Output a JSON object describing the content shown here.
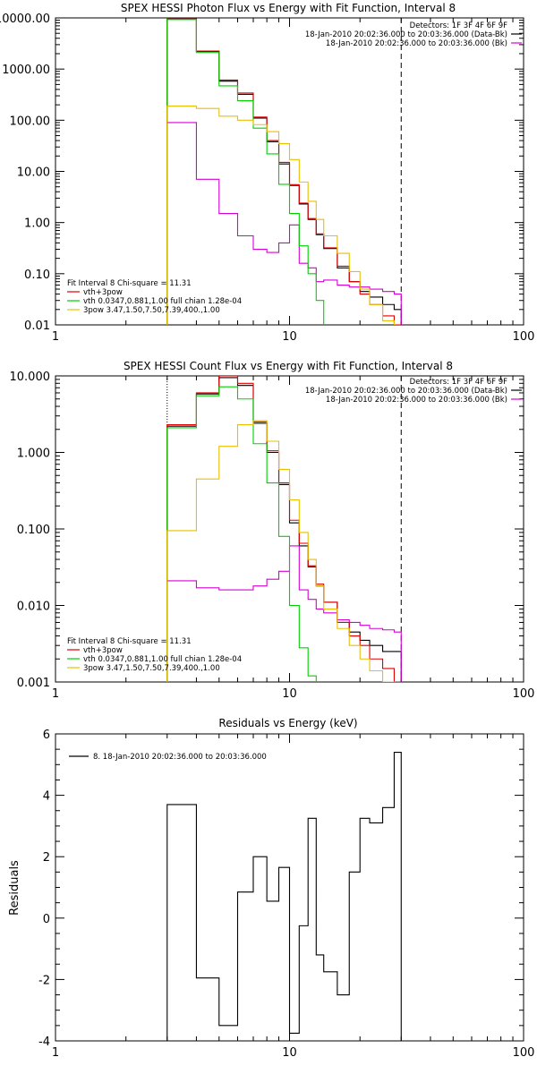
{
  "colors": {
    "data": "#000000",
    "bk": "#d400d4",
    "fit": "#e00000",
    "vth": "#00d000",
    "pow": "#e8c000"
  },
  "chart_data": [
    {
      "type": "line",
      "title": "SPEX HESSI Photon Flux vs Energy with Fit Function, Interval 8",
      "x_scale": "log",
      "y_scale": "log",
      "xlim": [
        1,
        100
      ],
      "ylim": [
        0.01,
        10000
      ],
      "x_ticks": [
        {
          "value": 1,
          "label": "1"
        },
        {
          "value": 10,
          "label": "10"
        },
        {
          "value": 100,
          "label": "100"
        }
      ],
      "y_ticks": [
        {
          "value": 0.01,
          "label": "0.01"
        },
        {
          "value": 0.1,
          "label": "0.10"
        },
        {
          "value": 1,
          "label": "1.00"
        },
        {
          "value": 10,
          "label": "10.00"
        },
        {
          "value": 100,
          "label": "100.00"
        },
        {
          "value": 1000,
          "label": "1000.00"
        },
        {
          "value": 10000,
          "label": "10000.00"
        }
      ],
      "vlines": [
        {
          "x": 3.0,
          "style": "dotted",
          "color": "#00d000"
        },
        {
          "x": 30.0,
          "style": "dashed",
          "color": "#000000"
        }
      ],
      "legend_top": [
        "Detectors: 1F 3F 4F 6F 9F",
        "18-Jan-2010 20:02:36.000 to 20:03:36.000 (Data-Bk)",
        "18-Jan-2010 20:02:36.000 to 20:03:36.000 (Bk)"
      ],
      "legend_bottom": [
        "Fit Interval 8   Chi-square = 11.31",
        "vth+3pow",
        "vth 0.0347,0.881,1.00  full chian 1.28e-04",
        "3pow 3.47,1.50,7.50,7.39,400.,1.00"
      ],
      "edges": [
        3,
        4,
        5,
        6,
        7,
        8,
        9,
        10,
        11,
        12,
        13,
        14,
        16,
        18,
        20,
        22,
        25,
        28,
        30
      ],
      "series": [
        {
          "name": "Data-Bk",
          "color": "#000000",
          "values": [
            9500,
            2200,
            580,
            320,
            110,
            38,
            14,
            5.3,
            2.3,
            1.15,
            0.58,
            0.31,
            0.13,
            0.07,
            0.045,
            0.035,
            0.025,
            0.02
          ]
        },
        {
          "name": "Bk",
          "color": "#d400d4",
          "values": [
            90,
            7,
            1.5,
            0.55,
            0.3,
            0.26,
            0.4,
            0.9,
            0.16,
            0.13,
            0.07,
            0.075,
            0.06,
            0.055,
            0.055,
            0.05,
            0.045,
            0.04
          ]
        },
        {
          "name": "vth+3pow",
          "color": "#e00000",
          "values": [
            9500,
            2250,
            610,
            340,
            115,
            40,
            15,
            5.5,
            2.4,
            1.2,
            0.6,
            0.32,
            0.14,
            0.07,
            0.04,
            0.025,
            0.015,
            0.01
          ]
        },
        {
          "name": "vth",
          "color": "#00d000",
          "values": [
            9300,
            2100,
            470,
            240,
            70,
            22,
            5.6,
            1.5,
            0.35,
            0.1,
            0.03,
            0.008,
            0.008,
            0.008,
            0.008,
            0.008,
            0.008,
            0.008
          ]
        },
        {
          "name": "3pow",
          "color": "#e8c000",
          "values": [
            190,
            170,
            120,
            100,
            82,
            60,
            35,
            17,
            6.2,
            2.6,
            1.15,
            0.55,
            0.25,
            0.11,
            0.05,
            0.025,
            0.012,
            0.008
          ]
        }
      ]
    },
    {
      "type": "line",
      "title": "SPEX HESSI Count Flux vs Energy with Fit Function, Interval 8",
      "x_scale": "log",
      "y_scale": "log",
      "xlim": [
        1,
        100
      ],
      "ylim": [
        0.001,
        10
      ],
      "x_ticks": [
        {
          "value": 1,
          "label": "1"
        },
        {
          "value": 10,
          "label": "10"
        },
        {
          "value": 100,
          "label": "100"
        }
      ],
      "y_ticks": [
        {
          "value": 0.001,
          "label": "0.001"
        },
        {
          "value": 0.01,
          "label": "0.010"
        },
        {
          "value": 0.1,
          "label": "0.100"
        },
        {
          "value": 1,
          "label": "1.000"
        },
        {
          "value": 10,
          "label": "10.000"
        }
      ],
      "vlines": [
        {
          "x": 3.0,
          "style": "dotted",
          "color": "#000000"
        },
        {
          "x": 30.0,
          "style": "dashed",
          "color": "#000000"
        }
      ],
      "legend_top": [
        "Detectors: 1F 3F 4F 6F 9F",
        "18-Jan-2010 20:02:36.000 to 20:03:36.000 (Data-Bk)",
        "18-Jan-2010 20:02:36.000 to 20:03:36.000 (Bk)"
      ],
      "legend_bottom": [
        "Fit Interval 8   Chi-square = 11.31",
        "vth+3pow",
        "vth 0.0347,0.881,1.00  full chian 1.28e-04",
        "3pow 3.47,1.50,7.50,7.39,400.,1.00"
      ],
      "edges": [
        3,
        4,
        5,
        6,
        7,
        8,
        9,
        10,
        11,
        12,
        13,
        14,
        16,
        18,
        20,
        22,
        25,
        28,
        30
      ],
      "series": [
        {
          "name": "Data-Bk",
          "color": "#000000",
          "values": [
            2.2,
            5.8,
            9.5,
            7.5,
            2.4,
            1.0,
            0.38,
            0.12,
            0.06,
            0.032,
            0.018,
            0.011,
            0.006,
            0.0045,
            0.0035,
            0.003,
            0.0025,
            0.0025
          ]
        },
        {
          "name": "Bk",
          "color": "#d400d4",
          "values": [
            0.021,
            0.017,
            0.016,
            0.016,
            0.018,
            0.022,
            0.028,
            0.06,
            0.016,
            0.012,
            0.009,
            0.008,
            0.0065,
            0.006,
            0.0055,
            0.005,
            0.0048,
            0.0045
          ]
        },
        {
          "name": "vth+3pow",
          "color": "#e00000",
          "values": [
            2.3,
            6.0,
            10.0,
            8.0,
            2.5,
            1.05,
            0.4,
            0.13,
            0.065,
            0.033,
            0.019,
            0.011,
            0.006,
            0.004,
            0.003,
            0.002,
            0.0015,
            0.001
          ]
        },
        {
          "name": "vth",
          "color": "#00d000",
          "values": [
            2.1,
            5.5,
            7.2,
            5.0,
            1.3,
            0.4,
            0.08,
            0.01,
            0.0028,
            0.0012,
            0.0008,
            0.0008,
            0.0008,
            0.0008,
            0.0008,
            0.0008,
            0.0008,
            0.0008
          ]
        },
        {
          "name": "3pow",
          "color": "#e8c000",
          "values": [
            0.095,
            0.45,
            1.2,
            2.3,
            2.6,
            1.4,
            0.6,
            0.24,
            0.09,
            0.04,
            0.018,
            0.009,
            0.005,
            0.003,
            0.002,
            0.0014,
            0.001,
            0.0008
          ]
        }
      ]
    },
    {
      "type": "line",
      "title": "Residuals vs Energy (keV)",
      "ylabel": "Residuals",
      "x_scale": "log",
      "y_scale": "linear",
      "xlim": [
        1,
        100
      ],
      "ylim": [
        -4,
        6
      ],
      "x_ticks": [
        {
          "value": 1,
          "label": "1"
        },
        {
          "value": 10,
          "label": "10"
        },
        {
          "value": 100,
          "label": "100"
        }
      ],
      "y_ticks": [
        {
          "value": -4,
          "label": "-4"
        },
        {
          "value": -2,
          "label": "-2"
        },
        {
          "value": 0,
          "label": "0"
        },
        {
          "value": 2,
          "label": "2"
        },
        {
          "value": 4,
          "label": "4"
        },
        {
          "value": 6,
          "label": "6"
        }
      ],
      "legend": [
        "8. 18-Jan-2010 20:02:36.000 to 20:03:36.000"
      ],
      "edges": [
        3,
        4,
        5,
        6,
        7,
        8,
        9,
        10,
        11,
        12,
        13,
        14,
        16,
        18,
        20,
        22,
        25,
        28,
        30
      ],
      "series": [
        {
          "name": "8. 18-Jan-2010 20:02:36.000 to 20:03:36.000",
          "color": "#000000",
          "values": [
            3.7,
            -1.95,
            -3.5,
            0.85,
            2.0,
            0.55,
            1.65,
            -3.75,
            -0.25,
            3.25,
            -1.2,
            -1.75,
            -2.5,
            1.5,
            3.25,
            3.1,
            3.6,
            5.4
          ]
        }
      ]
    }
  ]
}
